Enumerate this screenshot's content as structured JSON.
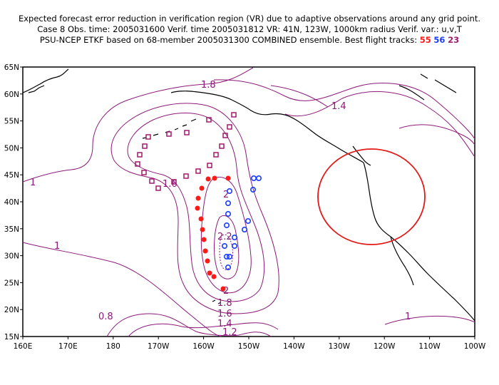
{
  "header": {
    "line1": "Expected forecast error reduction in verification region (VR) due to adaptive observations around any grid point.",
    "line2": "Case 8  Obs. time: 2005031600  Verif. time 2005031812  VR: 41N, 123W, 1000km radius  Verif. var.: u,v,T",
    "line3_prefix": "PSU-NCEP ETKF based on 68-member 2005031300 COMBINED ensemble.  Best flight tracks:",
    "track_red": "55",
    "track_blue": "56",
    "track_purple": "23"
  },
  "axes": {
    "lat_labels": [
      "65N",
      "60N",
      "55N",
      "50N",
      "45N",
      "40N",
      "35N",
      "30N",
      "25N",
      "20N",
      "15N"
    ],
    "lon_labels": [
      "160E",
      "170E",
      "180",
      "170W",
      "160W",
      "150W",
      "140W",
      "130W",
      "120W",
      "110W",
      "100W"
    ]
  },
  "contour_labels": {
    "c18_top": "1.8",
    "c14_right": "1.4",
    "c1_left": "1",
    "c16_mid": "1.6",
    "c2_upper": "2",
    "c2_mid": "2.2",
    "c1_lower": "1",
    "c08": "0.8",
    "c18_b": "1.8",
    "c16_b": "1.6",
    "c14_b": "1.4",
    "c12_b": "1.2",
    "c2_b": "2",
    "c1_right": "1"
  },
  "colors": {
    "contour": "#8c1a78",
    "coast": "#000000",
    "vr_circle": "#e21a1a",
    "track_red": "#ff1a1a",
    "track_blue": "#1a3cff",
    "track_purple": "#a01a6e"
  },
  "verification_region": {
    "center_lat": 41,
    "center_lon": -123,
    "radius_km": 1000
  }
}
